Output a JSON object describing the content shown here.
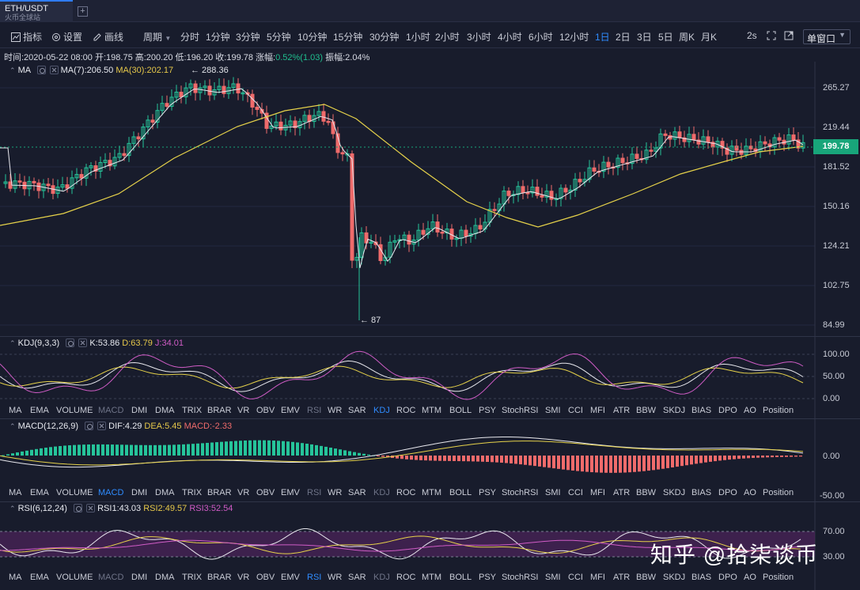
{
  "tab": {
    "symbol": "ETH/USDT",
    "exchange": "火币全球站",
    "add_label": "+"
  },
  "toolbar": {
    "indicators_label": "指标",
    "settings_label": "设置",
    "draw_label": "画线",
    "period_label": "周期",
    "periods": [
      "分时",
      "1分钟",
      "3分钟",
      "5分钟",
      "10分钟",
      "15分钟",
      "30分钟",
      "1小时",
      "2小时",
      "3小时",
      "4小时",
      "6小时",
      "12小时",
      "1日",
      "2日",
      "3日",
      "5日",
      "周K",
      "月K"
    ],
    "active_period": "1日",
    "refresh": "2s",
    "window_mode": "单窗口"
  },
  "ohlc_info": {
    "time": "时间:2020-05-22 08:00",
    "open": "开:198.75",
    "high": "高:200.20",
    "low": "低:196.20",
    "close": "收:199.78",
    "change_label": "涨幅:",
    "change": "0.52%(1.03)",
    "amplitude": "振幅:2.04%"
  },
  "main_legend": {
    "name": "MA",
    "ma7": "MA(7):206.50",
    "ma30": "MA(30):202.17"
  },
  "price_axis": [
    "265.27",
    "219.44",
    "181.52",
    "150.16",
    "124.21",
    "102.75",
    "84.99"
  ],
  "last_price": "199.78",
  "annotations": {
    "high_marker": "← 288.36",
    "low_marker": "← 87"
  },
  "kdj": {
    "name": "KDJ(9,3,3)",
    "k": "K:53.86",
    "d": "D:63.79",
    "j": "J:34.01",
    "axis": [
      "100.00",
      "50.00",
      "0.00"
    ]
  },
  "macd": {
    "name": "MACD(12,26,9)",
    "dif": "DIF:4.29",
    "dea": "DEA:5.45",
    "macd": "MACD:-2.33",
    "axis": [
      "0.00",
      "-50.00"
    ]
  },
  "rsi": {
    "name": "RSI(6,12,24)",
    "rsi1": "RSI1:43.03",
    "rsi2": "RSI2:49.57",
    "rsi3": "RSI3:52.54",
    "axis": [
      "70.00",
      "30.00"
    ]
  },
  "indicator_tabs": [
    "MA",
    "EMA",
    "VOLUME",
    "MACD",
    "DMI",
    "DMA",
    "TRIX",
    "BRAR",
    "VR",
    "OBV",
    "EMV",
    "RSI",
    "WR",
    "SAR",
    "KDJ",
    "ROC",
    "MTM",
    "BOLL",
    "PSY",
    "StochRSI",
    "SMI",
    "CCI",
    "MFI",
    "ATR",
    "BBW",
    "SKDJ",
    "BIAS",
    "DPO",
    "AO",
    "Position"
  ],
  "watermark": "知乎 @拾柒谈币",
  "colors": {
    "up": "#26c49a",
    "down": "#ef6b6b",
    "ma7": "#e8e8ee",
    "ma30": "#e6d24a",
    "accent": "#2f8cff",
    "background": "#181c2c"
  }
}
